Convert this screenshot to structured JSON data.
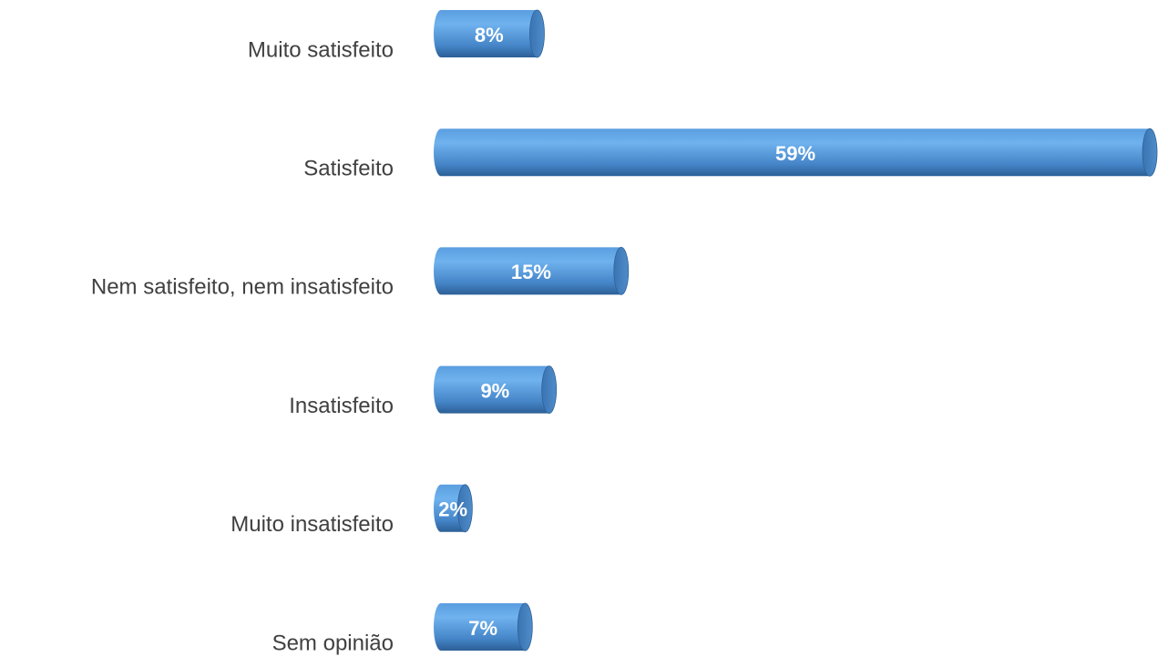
{
  "chart_data": {
    "type": "bar",
    "orientation": "horizontal",
    "categories": [
      "Muito satisfeito",
      "Satisfeito",
      "Nem satisfeito, nem insatisfeito",
      "Insatisfeito",
      "Muito insatisfeito",
      "Sem opinião"
    ],
    "values": [
      8,
      59,
      15,
      9,
      2,
      7
    ],
    "value_labels": [
      "8%",
      "59%",
      "15%",
      "9%",
      "2%",
      "7%"
    ],
    "color": "#4a8fd6"
  }
}
